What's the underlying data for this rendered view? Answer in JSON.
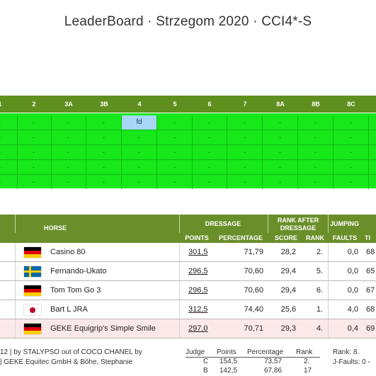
{
  "page": {
    "title": "LeaderBoard · Strzegom 2020 · CCI4*-S"
  },
  "obstacles": {
    "headers": [
      "1",
      "2",
      "3A",
      "3B",
      "4",
      "5",
      "6",
      "7",
      "8A",
      "8B",
      "8C"
    ],
    "rows": [
      [
        "-",
        "-",
        "-",
        "-",
        "fd",
        "-",
        "-",
        "-",
        "-",
        "-",
        "-"
      ],
      [
        "-",
        "-",
        "-",
        "-",
        "-",
        "-",
        "-",
        "-",
        "-",
        "-",
        "-"
      ],
      [
        "-",
        "-",
        "-",
        "-",
        "-",
        "-",
        "-",
        "-",
        "-",
        "-",
        "-"
      ],
      [
        "-",
        "-",
        "-",
        "-",
        "-",
        "-",
        "-",
        "-",
        "-",
        "-",
        "-"
      ],
      [
        "-",
        "-",
        "-",
        "-",
        "-",
        "-",
        "-",
        "-",
        "-",
        "-",
        "-"
      ]
    ],
    "highlight_color": "#a8d6f5"
  },
  "results": {
    "headers": {
      "horse": "HORSE",
      "dressage": "DRESSAGE",
      "rank_after": "RANK AFTER DRESSAGE",
      "jumping": "JUMPING",
      "points": "POINTS",
      "percentage": "PERCENTAGE",
      "score": "SCORE",
      "rank": "RANK",
      "faults": "FAULTS",
      "time": "TI"
    },
    "rows": [
      {
        "flag": "germany-flag",
        "horse": "Casino 80",
        "points": "301,5",
        "percentage": "71,79",
        "score": "28,2",
        "rank": "2.",
        "faults": "0,0",
        "time": "68"
      },
      {
        "flag": "sweden-flag",
        "horse": "Fernando-Ukato",
        "points": "296,5",
        "percentage": "70,60",
        "score": "29,4",
        "rank": "5.",
        "faults": "0,0",
        "time": "65"
      },
      {
        "flag": "germany-flag",
        "horse": "Tom Tom Go 3",
        "points": "296,5",
        "percentage": "70,60",
        "score": "29,4",
        "rank": "6.",
        "faults": "0,0",
        "time": "67"
      },
      {
        "flag": "japan-flag",
        "horse": "Bart L JRA",
        "points": "312,5",
        "percentage": "74,40",
        "score": "25,6",
        "rank": "1.",
        "faults": "4,0",
        "time": "68"
      },
      {
        "flag": "germany-flag",
        "horse": "GEKE Equigrip's Simple Smile",
        "points": "297,0",
        "percentage": "70,71",
        "score": "29,3",
        "rank": "4.",
        "faults": "0,4",
        "time": "69"
      }
    ]
  },
  "detail": {
    "line1": "12 | by STALYPSO out of COCO CHANEL by",
    "line2": "| GEKE Equitec GmbH & Böhe, Stephanie",
    "judges": {
      "headers": [
        "Judge",
        "Points",
        "Percentage",
        "Rank"
      ],
      "rows": [
        [
          "C",
          "154,5",
          "73,57",
          "2."
        ],
        [
          "B",
          "142,5",
          "67,86",
          "17"
        ]
      ]
    },
    "rank_text": "Rank: 8.",
    "jfaults_text": "J-Faults: 0 -"
  }
}
